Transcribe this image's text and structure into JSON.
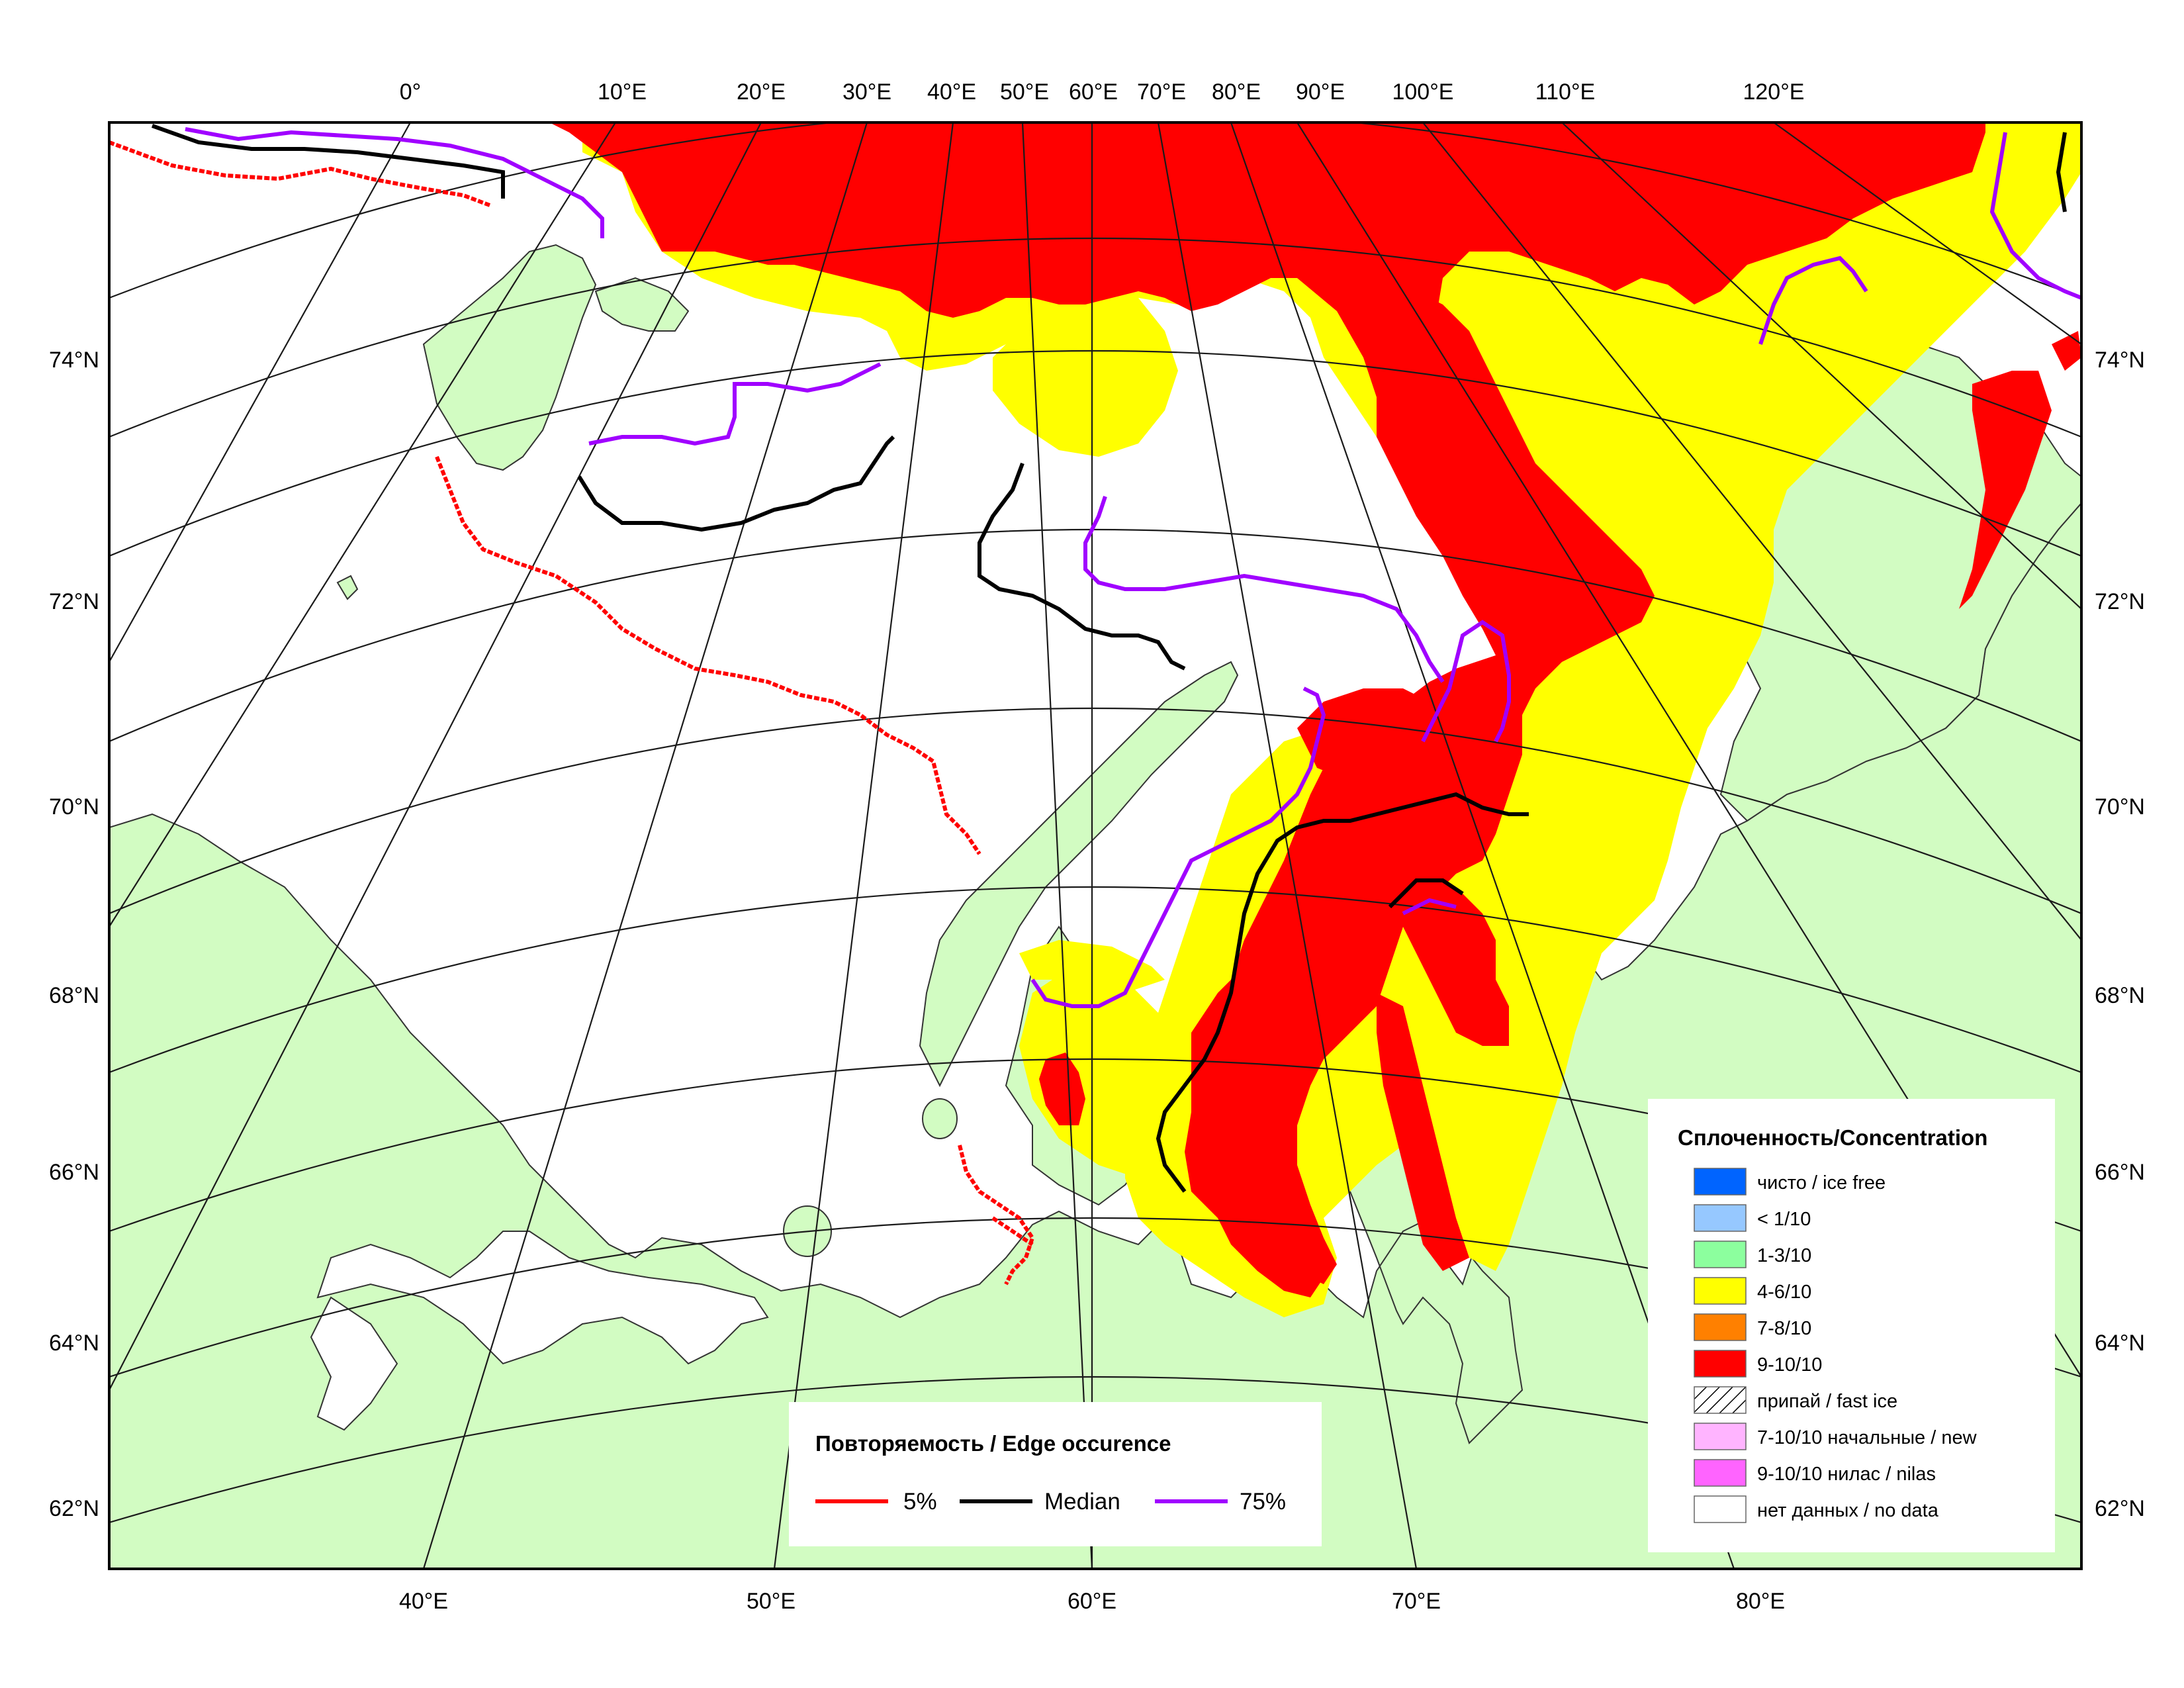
{
  "map": {
    "colors": {
      "land": "#d2fcc2",
      "ocean": "#ffffff",
      "ice_ice_free": "#0064ff",
      "ice_lt1": "#96c8ff",
      "ice_1_3": "#8cff9e",
      "ice_4_6": "#ffff00",
      "ice_7_8": "#ff8000",
      "ice_9_10": "#ff0000",
      "ice_new": "#ffb4ff",
      "ice_nilas": "#ff64ff",
      "edge_5": "#ff0000",
      "edge_median": "#000000",
      "edge_75": "#a000ff",
      "grid": "#1a1a1a"
    },
    "top_lon_labels": [
      "0°",
      "10°E",
      "20°E",
      "30°E",
      "40°E",
      "50°E",
      "60°E",
      "70°E",
      "80°E",
      "90°E",
      "100°E",
      "110°E",
      "120°E"
    ],
    "bottom_lon_labels": [
      "40°E",
      "50°E",
      "60°E",
      "70°E",
      "80°E"
    ],
    "left_lat_labels": [
      "74°N",
      "72°N",
      "70°N",
      "68°N",
      "66°N",
      "64°N",
      "62°N"
    ],
    "right_lat_labels": [
      "74°N",
      "72°N",
      "70°N",
      "68°N",
      "66°N",
      "64°N",
      "62°N"
    ]
  },
  "concentration_legend": {
    "title": "Сплоченность/Concentration",
    "items": [
      {
        "label": "чисто / ice free",
        "color": "#0064ff"
      },
      {
        "label": "< 1/10",
        "color": "#96c8ff"
      },
      {
        "label": "1-3/10",
        "color": "#8cff9e"
      },
      {
        "label": "4-6/10",
        "color": "#ffff00"
      },
      {
        "label": "7-8/10",
        "color": "#ff8000"
      },
      {
        "label": "9-10/10",
        "color": "#ff0000"
      },
      {
        "label": "припай / fast ice",
        "color": "hatch"
      },
      {
        "label": "7-10/10 начальные / new",
        "color": "#ffb4ff"
      },
      {
        "label": "9-10/10 нилас / nilas",
        "color": "#ff64ff"
      },
      {
        "label": "нет данных / no data",
        "color": "#ffffff"
      }
    ]
  },
  "edge_legend": {
    "title": "Повторяемость / Edge occurence",
    "items": [
      {
        "label": "5%",
        "color": "#ff0000"
      },
      {
        "label": "Median",
        "color": "#000000"
      },
      {
        "label": "75%",
        "color": "#a000ff"
      }
    ]
  }
}
